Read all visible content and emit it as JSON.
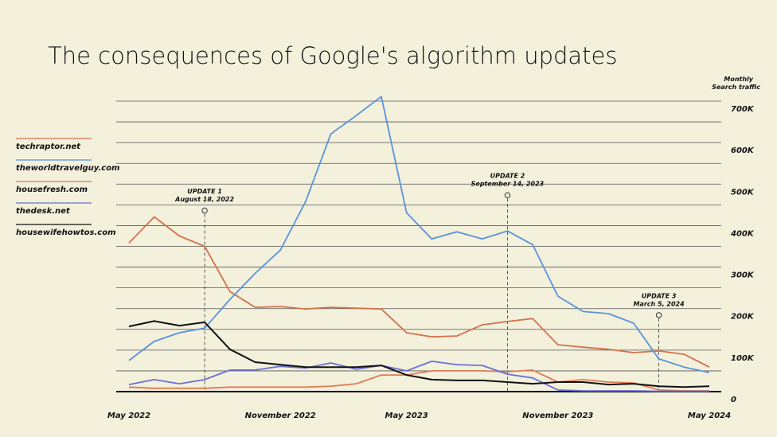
{
  "chart_data": {
    "type": "line",
    "title": "The consequences of Google's algorithm updates",
    "y_label": [
      "Monthly",
      "Search traffic"
    ],
    "categories": [
      "May 2022",
      null,
      null,
      null,
      null,
      null,
      "November 2022",
      null,
      null,
      null,
      null,
      "May 2023",
      null,
      null,
      null,
      null,
      null,
      "November 2023",
      null,
      null,
      null,
      null,
      null,
      "May 2024"
    ],
    "series": [
      {
        "name": "techraptor.net",
        "color": "#d2734c",
        "values": [
          358000,
          421000,
          375000,
          350000,
          241000,
          203000,
          205000,
          199000,
          203000,
          201000,
          199000,
          142000,
          132000,
          134000,
          161000,
          169000,
          176000,
          113000,
          107000,
          102000,
          94000,
          98000,
          90000,
          59000
        ]
      },
      {
        "name": "theworldtravelguy.com",
        "color": "#5a93d9",
        "values": [
          75000,
          121000,
          142000,
          153000,
          222000,
          285000,
          341000,
          458000,
          621000,
          665000,
          711000,
          431000,
          368000,
          385000,
          368000,
          387000,
          354000,
          230000,
          193000,
          188000,
          165000,
          79000,
          59000,
          46000
        ]
      },
      {
        "name": "housefresh.com",
        "color": "#dc7d55",
        "values": [
          11000,
          8000,
          8000,
          8000,
          11000,
          11000,
          11000,
          11000,
          13000,
          19000,
          40000,
          40000,
          50000,
          50000,
          50000,
          48000,
          52000,
          23000,
          29000,
          23000,
          21000,
          4000,
          2000,
          2000
        ]
      },
      {
        "name": "thedesk.net",
        "color": "#6a6fd6",
        "values": [
          17000,
          29000,
          19000,
          29000,
          52000,
          52000,
          61000,
          57000,
          69000,
          54000,
          63000,
          50000,
          73000,
          65000,
          63000,
          42000,
          33000,
          4000,
          2000,
          2000,
          2000,
          1000,
          1000,
          1000
        ]
      },
      {
        "name": "housewifehowtos.com",
        "color": "#111111",
        "values": [
          157000,
          170000,
          159000,
          167000,
          102000,
          71000,
          65000,
          59000,
          59000,
          59000,
          63000,
          40000,
          29000,
          27000,
          27000,
          23000,
          19000,
          23000,
          23000,
          17000,
          19000,
          13000,
          11000,
          13000
        ]
      }
    ],
    "ylim": [
      0,
      700000
    ],
    "yticks": [
      0,
      {
        "value": 100000,
        "label": "100K"
      },
      {
        "value": 200000,
        "label": "200K"
      },
      {
        "value": 300000,
        "label": "300K"
      },
      {
        "value": 400000,
        "label": "400K"
      },
      {
        "value": 500000,
        "label": "500K"
      },
      {
        "value": 600000,
        "label": "600K"
      },
      {
        "value": 700000,
        "label": "700K"
      }
    ],
    "minor_yticks": [
      50000,
      150000,
      250000,
      350000,
      450000,
      550000,
      650000
    ],
    "grid": true,
    "legend": "left",
    "annotations": [
      {
        "index": 3,
        "label": "UPDATE 1",
        "date": "August 18, 2022"
      },
      {
        "index": 15,
        "label": "UPDATE 2",
        "date": "September 14, 2023"
      },
      {
        "index": 21,
        "label": "UPDATE 3",
        "date": "March 5, 2024"
      }
    ]
  }
}
